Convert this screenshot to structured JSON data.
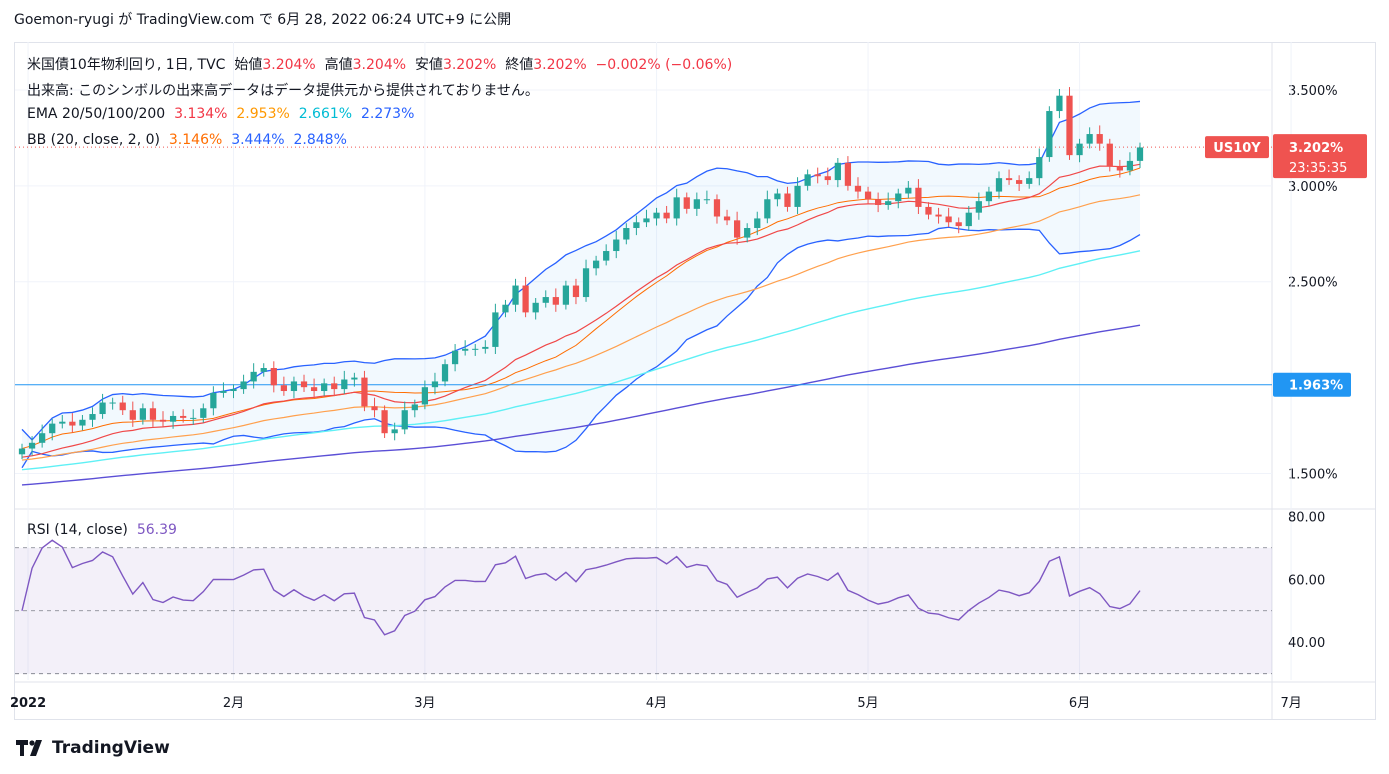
{
  "header": {
    "text": "Goemon-ryugi が TradingView.com で 6月 28, 2022 06:24 UTC+9 に公開"
  },
  "legend": {
    "symbol_line": "米国債10年物利回り, 1日, TVC",
    "open_label": "始値",
    "open": "3.204%",
    "high_label": "高値",
    "high": "3.204%",
    "low_label": "安値",
    "low": "3.202%",
    "close_label": "終値",
    "close": "3.202%",
    "change": "−0.002% (−0.06%)",
    "volume_note": "出来高: このシンボルの出来高データはデータ提供元から提供されておりません。",
    "ema_label": "EMA 20/50/100/200",
    "ema20": "3.134%",
    "ema50": "2.953%",
    "ema100": "2.661%",
    "ema200": "2.273%",
    "bb_label": "BB (20, close, 2, 0)",
    "bb_basis": "3.146%",
    "bb_upper": "3.444%",
    "bb_lower": "2.848%",
    "rsi_label": "RSI (14, close)",
    "rsi_value": "56.39"
  },
  "price_axis": {
    "ticks": [
      "3.500%",
      "3.000%",
      "2.500%",
      "1.500%"
    ],
    "last_symbol": "US10Y",
    "last_price": "3.202%",
    "countdown": "23:35:35",
    "hline_label": "1.963%"
  },
  "rsi_axis": {
    "ticks": [
      "80.00",
      "60.00",
      "40.00"
    ]
  },
  "time_axis": {
    "labels": [
      "2022",
      "2月",
      "3月",
      "4月",
      "5月",
      "6月",
      "7月"
    ]
  },
  "footer": {
    "brand": "TradingView"
  },
  "colors": {
    "up": "#26a69a",
    "down": "#ef5350",
    "ema20": "#f23645",
    "ema50": "#ff9800",
    "ema100": "#00e5ff",
    "ema200": "#2962ff",
    "bb": "#2962ff",
    "rsi": "#7e57c2",
    "hline": "#2196f3"
  },
  "chart_data": {
    "type": "candlestick",
    "title": "米国債10年物利回り, 1日, TVC",
    "period": [
      "2022-01-03",
      "2022-06-27"
    ],
    "ohlc_approx_close": [
      1.63,
      1.66,
      1.71,
      1.76,
      1.77,
      1.75,
      1.78,
      1.81,
      1.87,
      1.87,
      1.83,
      1.78,
      1.84,
      1.78,
      1.77,
      1.8,
      1.79,
      1.79,
      1.84,
      1.92,
      1.93,
      1.94,
      1.98,
      2.03,
      2.05,
      1.96,
      1.93,
      1.98,
      1.95,
      1.93,
      1.97,
      1.94,
      1.99,
      2.0,
      1.85,
      1.83,
      1.71,
      1.73,
      1.83,
      1.86,
      1.95,
      1.98,
      2.07,
      2.14,
      2.15,
      2.15,
      2.16,
      2.34,
      2.38,
      2.48,
      2.34,
      2.39,
      2.42,
      2.38,
      2.48,
      2.42,
      2.57,
      2.61,
      2.66,
      2.72,
      2.78,
      2.81,
      2.83,
      2.86,
      2.83,
      2.94,
      2.88,
      2.93,
      2.93,
      2.84,
      2.82,
      2.73,
      2.78,
      2.83,
      2.93,
      2.96,
      2.89,
      3.0,
      3.06,
      3.05,
      3.03,
      3.12,
      3.0,
      2.97,
      2.93,
      2.9,
      2.92,
      2.96,
      2.99,
      2.89,
      2.85,
      2.84,
      2.81,
      2.79,
      2.86,
      2.92,
      2.97,
      3.04,
      3.03,
      3.01,
      3.04,
      3.15,
      3.39,
      3.47,
      3.16,
      3.22,
      3.27,
      3.22,
      3.1,
      3.08,
      3.13,
      3.2
    ],
    "ema20_end": 3.134,
    "ema50_end": 2.953,
    "ema100_end": 2.661,
    "ema200_end": 2.273,
    "bb_basis_end": 3.146,
    "bb_upper_end": 3.444,
    "bb_lower_end": 2.848,
    "hline": 1.963,
    "rsi_end": 56.39,
    "rsi_bands": [
      70,
      50,
      30
    ],
    "ylim": [
      1.32,
      3.75
    ],
    "rsi_ylim": [
      28,
      82
    ]
  }
}
